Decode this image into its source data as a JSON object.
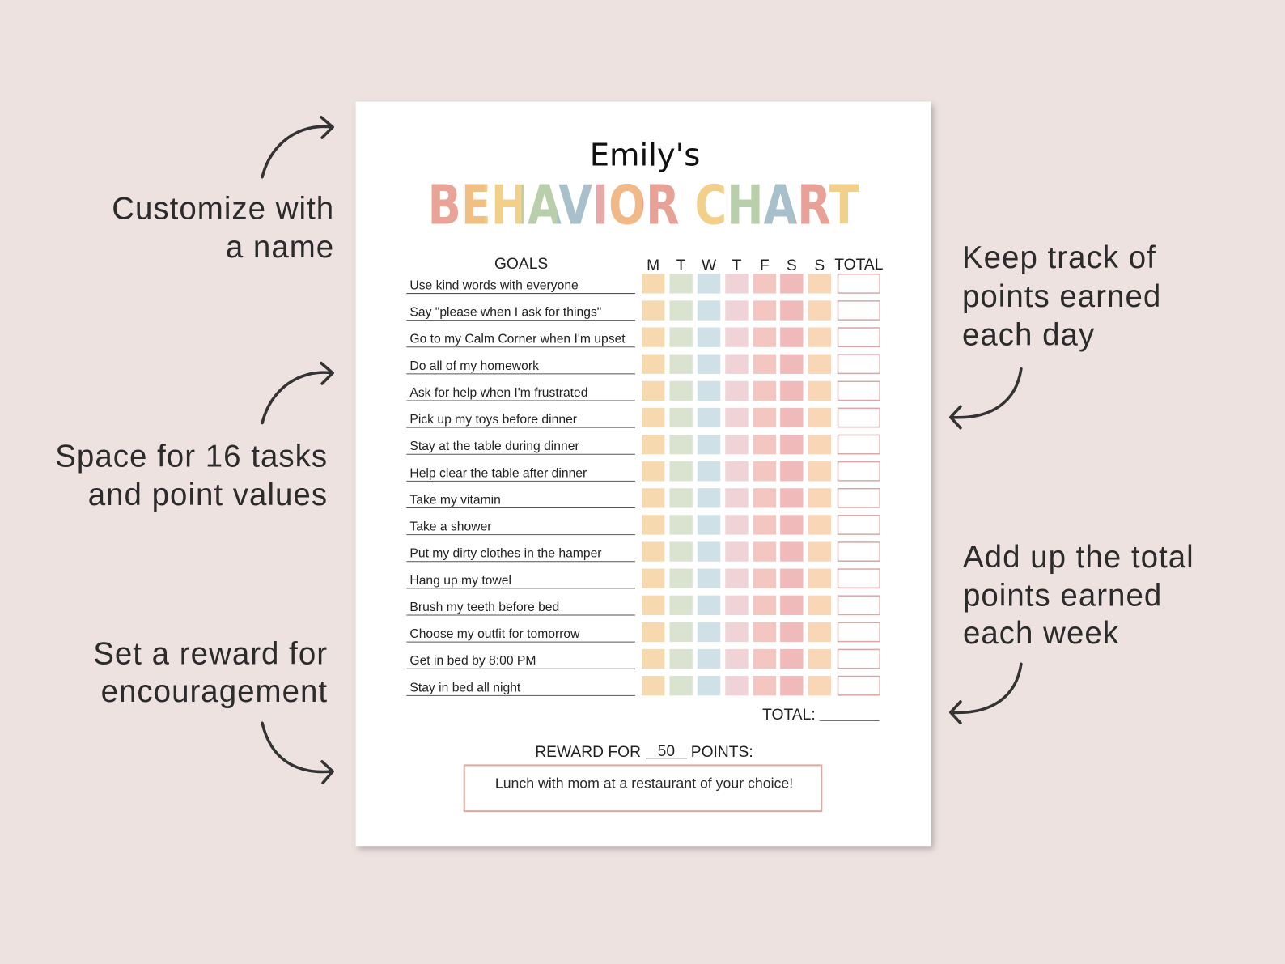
{
  "name": "Emily's",
  "title": "BEHAVIOR CHART",
  "goals_header": "GOALS",
  "days": [
    "M",
    "T",
    "W",
    "T",
    "F",
    "S",
    "S"
  ],
  "total_header": "TOTAL",
  "goals": [
    "Use kind words with everyone",
    "Say \"please when I ask for things\"",
    "Go to my Calm Corner when I'm upset",
    "Do all of my homework",
    "Ask for help when I'm frustrated",
    "Pick up my toys before dinner",
    "Stay at the table during dinner",
    "Help clear the table after dinner",
    "Take my vitamin",
    "Take a shower",
    "Put my dirty clothes in the hamper",
    "Hang up my towel",
    "Brush my teeth before bed",
    "Choose my outfit for tomorrow",
    "Get in bed by 8:00 PM",
    "Stay in bed all night"
  ],
  "total_label": "TOTAL:",
  "reward": {
    "prefix": "REWARD FOR",
    "points": "50",
    "suffix": "POINTS:",
    "text": "Lunch with mom at a restaurant of your choice!"
  },
  "annotations": [
    {
      "lines": [
        "Customize with",
        "a name"
      ]
    },
    {
      "lines": [
        "Space for 16 tasks",
        "and point values"
      ]
    },
    {
      "lines": [
        "Set a reward for",
        "encouragement"
      ]
    },
    {
      "lines": [
        "Keep track of",
        "points earned",
        "each day"
      ]
    },
    {
      "lines": [
        "Add up the total",
        "points earned",
        "each week"
      ]
    }
  ]
}
